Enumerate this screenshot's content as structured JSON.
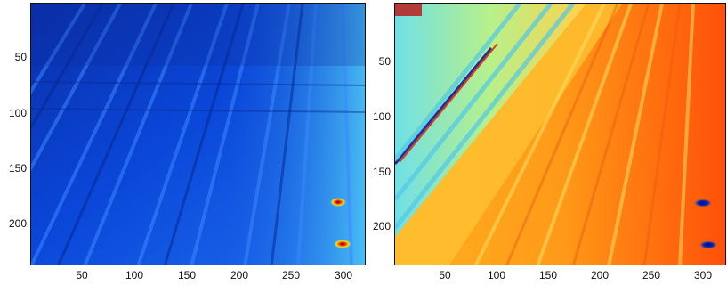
{
  "figure": {
    "left_panel": {
      "colormap": "jet",
      "x_ticks": [
        "50",
        "100",
        "150",
        "200",
        "250",
        "300"
      ],
      "y_ticks": [
        "50",
        "100",
        "150",
        "200"
      ],
      "x_range": [
        1,
        320
      ],
      "y_range": [
        1,
        240
      ],
      "hotspots": [
        {
          "x": 298,
          "y": 180
        },
        {
          "x": 302,
          "y": 219
        }
      ]
    },
    "right_panel": {
      "colormap": "jet",
      "x_ticks": [
        "50",
        "100",
        "150",
        "200",
        "250",
        "300"
      ],
      "y_ticks": [
        "50",
        "100",
        "150",
        "200"
      ],
      "x_range": [
        1,
        320
      ],
      "y_range": [
        1,
        240
      ],
      "hotspots": [
        {
          "x": 295,
          "y": 180
        },
        {
          "x": 300,
          "y": 220
        }
      ]
    }
  },
  "colors": {
    "left_base": "#0a3fd6",
    "left_stripe": "#2f6ff5",
    "right_base": "#f07a14",
    "right_edge": "#5fd3ea",
    "hotspot": "#d40000"
  }
}
